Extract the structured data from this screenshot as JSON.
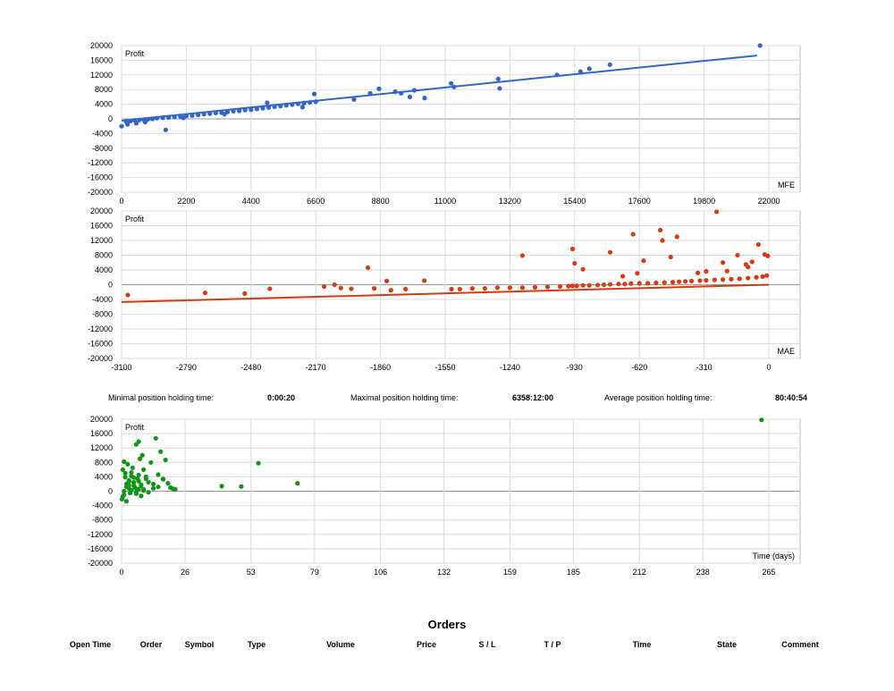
{
  "chart_data": [
    {
      "type": "scatter",
      "panel": "mfe",
      "title": "",
      "ylabel": "Profit",
      "xlabel": "MFE",
      "xlim": [
        0,
        22000
      ],
      "ylim": [
        -20000,
        20000
      ],
      "xticks": [
        0,
        2200,
        4400,
        6600,
        8800,
        11000,
        13200,
        15400,
        17600,
        19800,
        22000
      ],
      "yticks": [
        20000,
        16000,
        12000,
        8000,
        4000,
        0,
        -4000,
        -8000,
        -12000,
        -16000,
        -20000
      ],
      "grid": true,
      "color": "#3366cc",
      "trendline": {
        "x": [
          0,
          21600
        ],
        "y": [
          -500,
          17300
        ]
      },
      "points_x": [
        0,
        150,
        300,
        450,
        600,
        750,
        900,
        1050,
        1200,
        1400,
        1600,
        1800,
        2000,
        2200,
        2400,
        2600,
        2800,
        3000,
        3200,
        3400,
        3600,
        3800,
        4000,
        4200,
        4400,
        4600,
        4800,
        5000,
        5200,
        5400,
        5600,
        5800,
        6000,
        6200,
        6400,
        6600,
        1500,
        4950,
        6150,
        6550,
        7900,
        8450,
        8750,
        9300,
        9500,
        9800,
        9950,
        10300,
        11200,
        11300,
        12800,
        12850,
        14800,
        15600,
        15900,
        16600,
        21700,
        200,
        500,
        800,
        2100,
        3500
      ],
      "points_y": [
        -2000,
        -700,
        -600,
        -400,
        -300,
        -200,
        -100,
        0,
        200,
        300,
        400,
        500,
        600,
        800,
        900,
        1100,
        1300,
        1400,
        1600,
        1700,
        1900,
        2100,
        2200,
        2400,
        2500,
        2700,
        2900,
        3100,
        3300,
        3500,
        3700,
        3900,
        4100,
        4300,
        4500,
        4700,
        -3000,
        4400,
        3200,
        6800,
        5300,
        7000,
        8200,
        7400,
        7000,
        6000,
        7800,
        5700,
        9700,
        8700,
        10900,
        8300,
        12000,
        12900,
        13700,
        14800,
        20000,
        -1500,
        -1200,
        -900,
        300,
        1300
      ]
    },
    {
      "type": "scatter",
      "panel": "mae",
      "title": "",
      "ylabel": "Profit",
      "xlabel": "MAE",
      "xlim": [
        -3100,
        0
      ],
      "ylim": [
        -20000,
        20000
      ],
      "xticks": [
        -3100,
        -2790,
        -2480,
        -2170,
        -1860,
        -1550,
        -1240,
        -930,
        -620,
        -310,
        0
      ],
      "yticks": [
        20000,
        16000,
        12000,
        8000,
        4000,
        0,
        -4000,
        -8000,
        -12000,
        -16000,
        -20000
      ],
      "grid": true,
      "color": "#dc3912",
      "trendline": {
        "x": [
          -3100,
          0
        ],
        "y": [
          -4700,
          0
        ]
      },
      "points_x": [
        -3070,
        -2700,
        -2510,
        -2390,
        -2130,
        -2080,
        -2050,
        -2000,
        -1920,
        -1890,
        -1830,
        -1810,
        -1740,
        -1650,
        -1520,
        -1480,
        -1420,
        -1360,
        -1300,
        -1240,
        -1180,
        -1120,
        -1060,
        -1000,
        -960,
        -940,
        -920,
        -890,
        -860,
        -820,
        -790,
        -760,
        -720,
        -690,
        -660,
        -620,
        -580,
        -540,
        -500,
        -460,
        -430,
        -400,
        -370,
        -330,
        -300,
        -260,
        -220,
        -180,
        -140,
        -100,
        -60,
        -30,
        -10,
        -1180,
        -940,
        -930,
        -890,
        -760,
        -650,
        -630,
        -520,
        -510,
        -470,
        -440,
        -340,
        -250,
        -220,
        -200,
        -150,
        -110,
        -80,
        -50,
        -20,
        -5,
        -700,
        -600,
        -300,
        -100
      ],
      "points_y": [
        -2800,
        -2200,
        -2400,
        -1100,
        -500,
        0,
        -900,
        -1100,
        4600,
        -1000,
        1000,
        -1500,
        -1200,
        1100,
        -1200,
        -1200,
        -1000,
        -1000,
        -800,
        -800,
        -800,
        -700,
        -600,
        -500,
        -400,
        -300,
        -300,
        -200,
        -200,
        -100,
        0,
        100,
        200,
        200,
        300,
        400,
        400,
        500,
        600,
        700,
        800,
        900,
        1000,
        1100,
        1200,
        1300,
        1400,
        1500,
        1600,
        1800,
        2000,
        2200,
        2500,
        7900,
        9700,
        5800,
        4200,
        8800,
        13700,
        3100,
        14800,
        12000,
        7500,
        13000,
        3200,
        19800,
        6000,
        3700,
        8000,
        5500,
        6200,
        10900,
        8200,
        7800,
        2300,
        6500,
        3600,
        4800
      ]
    },
    {
      "type": "scatter",
      "panel": "time",
      "title": "",
      "ylabel": "Profit",
      "xlabel": "Time (days)",
      "xlim": [
        0,
        265
      ],
      "ylim": [
        -20000,
        20000
      ],
      "xticks": [
        0,
        26,
        53,
        79,
        106,
        132,
        159,
        185,
        212,
        238,
        265
      ],
      "yticks": [
        20000,
        16000,
        12000,
        8000,
        4000,
        0,
        -4000,
        -8000,
        -12000,
        -16000,
        -20000
      ],
      "grid": true,
      "color": "#109618",
      "points_x": [
        0.2,
        0.5,
        1,
        1.5,
        2,
        2.5,
        3,
        3.5,
        4,
        4.5,
        5,
        5.5,
        6,
        6.5,
        7,
        7.5,
        8,
        8.5,
        9,
        10,
        11,
        12,
        13,
        14,
        15,
        16,
        17,
        18,
        19,
        20,
        21,
        22,
        1,
        2,
        3,
        4,
        5,
        6,
        7,
        8,
        9,
        10,
        2,
        4,
        6,
        8,
        0.5,
        1.5,
        3,
        5,
        7,
        9,
        11,
        13,
        15,
        17,
        41,
        49,
        56,
        72,
        262,
        1,
        3,
        5,
        7
      ],
      "points_y": [
        -2200,
        -1500,
        8200,
        5000,
        2000,
        7500,
        3000,
        -500,
        4200,
        6500,
        2500,
        1000,
        13000,
        3500,
        13800,
        9000,
        1500,
        10000,
        6000,
        3500,
        2500,
        8000,
        2000,
        14700,
        4600,
        11000,
        3300,
        8700,
        2200,
        1000,
        700,
        500,
        -1000,
        -2800,
        800,
        5200,
        3800,
        -200,
        2800,
        -1300,
        500,
        4000,
        1200,
        300,
        -700,
        1800,
        6000,
        3900,
        2700,
        1500,
        600,
        200,
        -300,
        800,
        1200,
        3400,
        1400,
        1300,
        7800,
        2200,
        19800,
        0,
        1600,
        2400,
        4500
      ]
    }
  ],
  "stats": {
    "min_label": "Minimal position holding time:",
    "min_value": "0:00:20",
    "max_label": "Maximal position holding time:",
    "max_value": "6358:12:00",
    "avg_label": "Average position holding time:",
    "avg_value": "80:40:54"
  },
  "orders": {
    "title": "Orders",
    "columns": [
      "Open Time",
      "Order",
      "Symbol",
      "Type",
      "Volume",
      "Price",
      "S / L",
      "T / P",
      "Time",
      "State",
      "Comment"
    ]
  },
  "colors": {
    "grid": "#dddddd",
    "frame": "#bbbbbb",
    "zero_line": "#999999"
  }
}
